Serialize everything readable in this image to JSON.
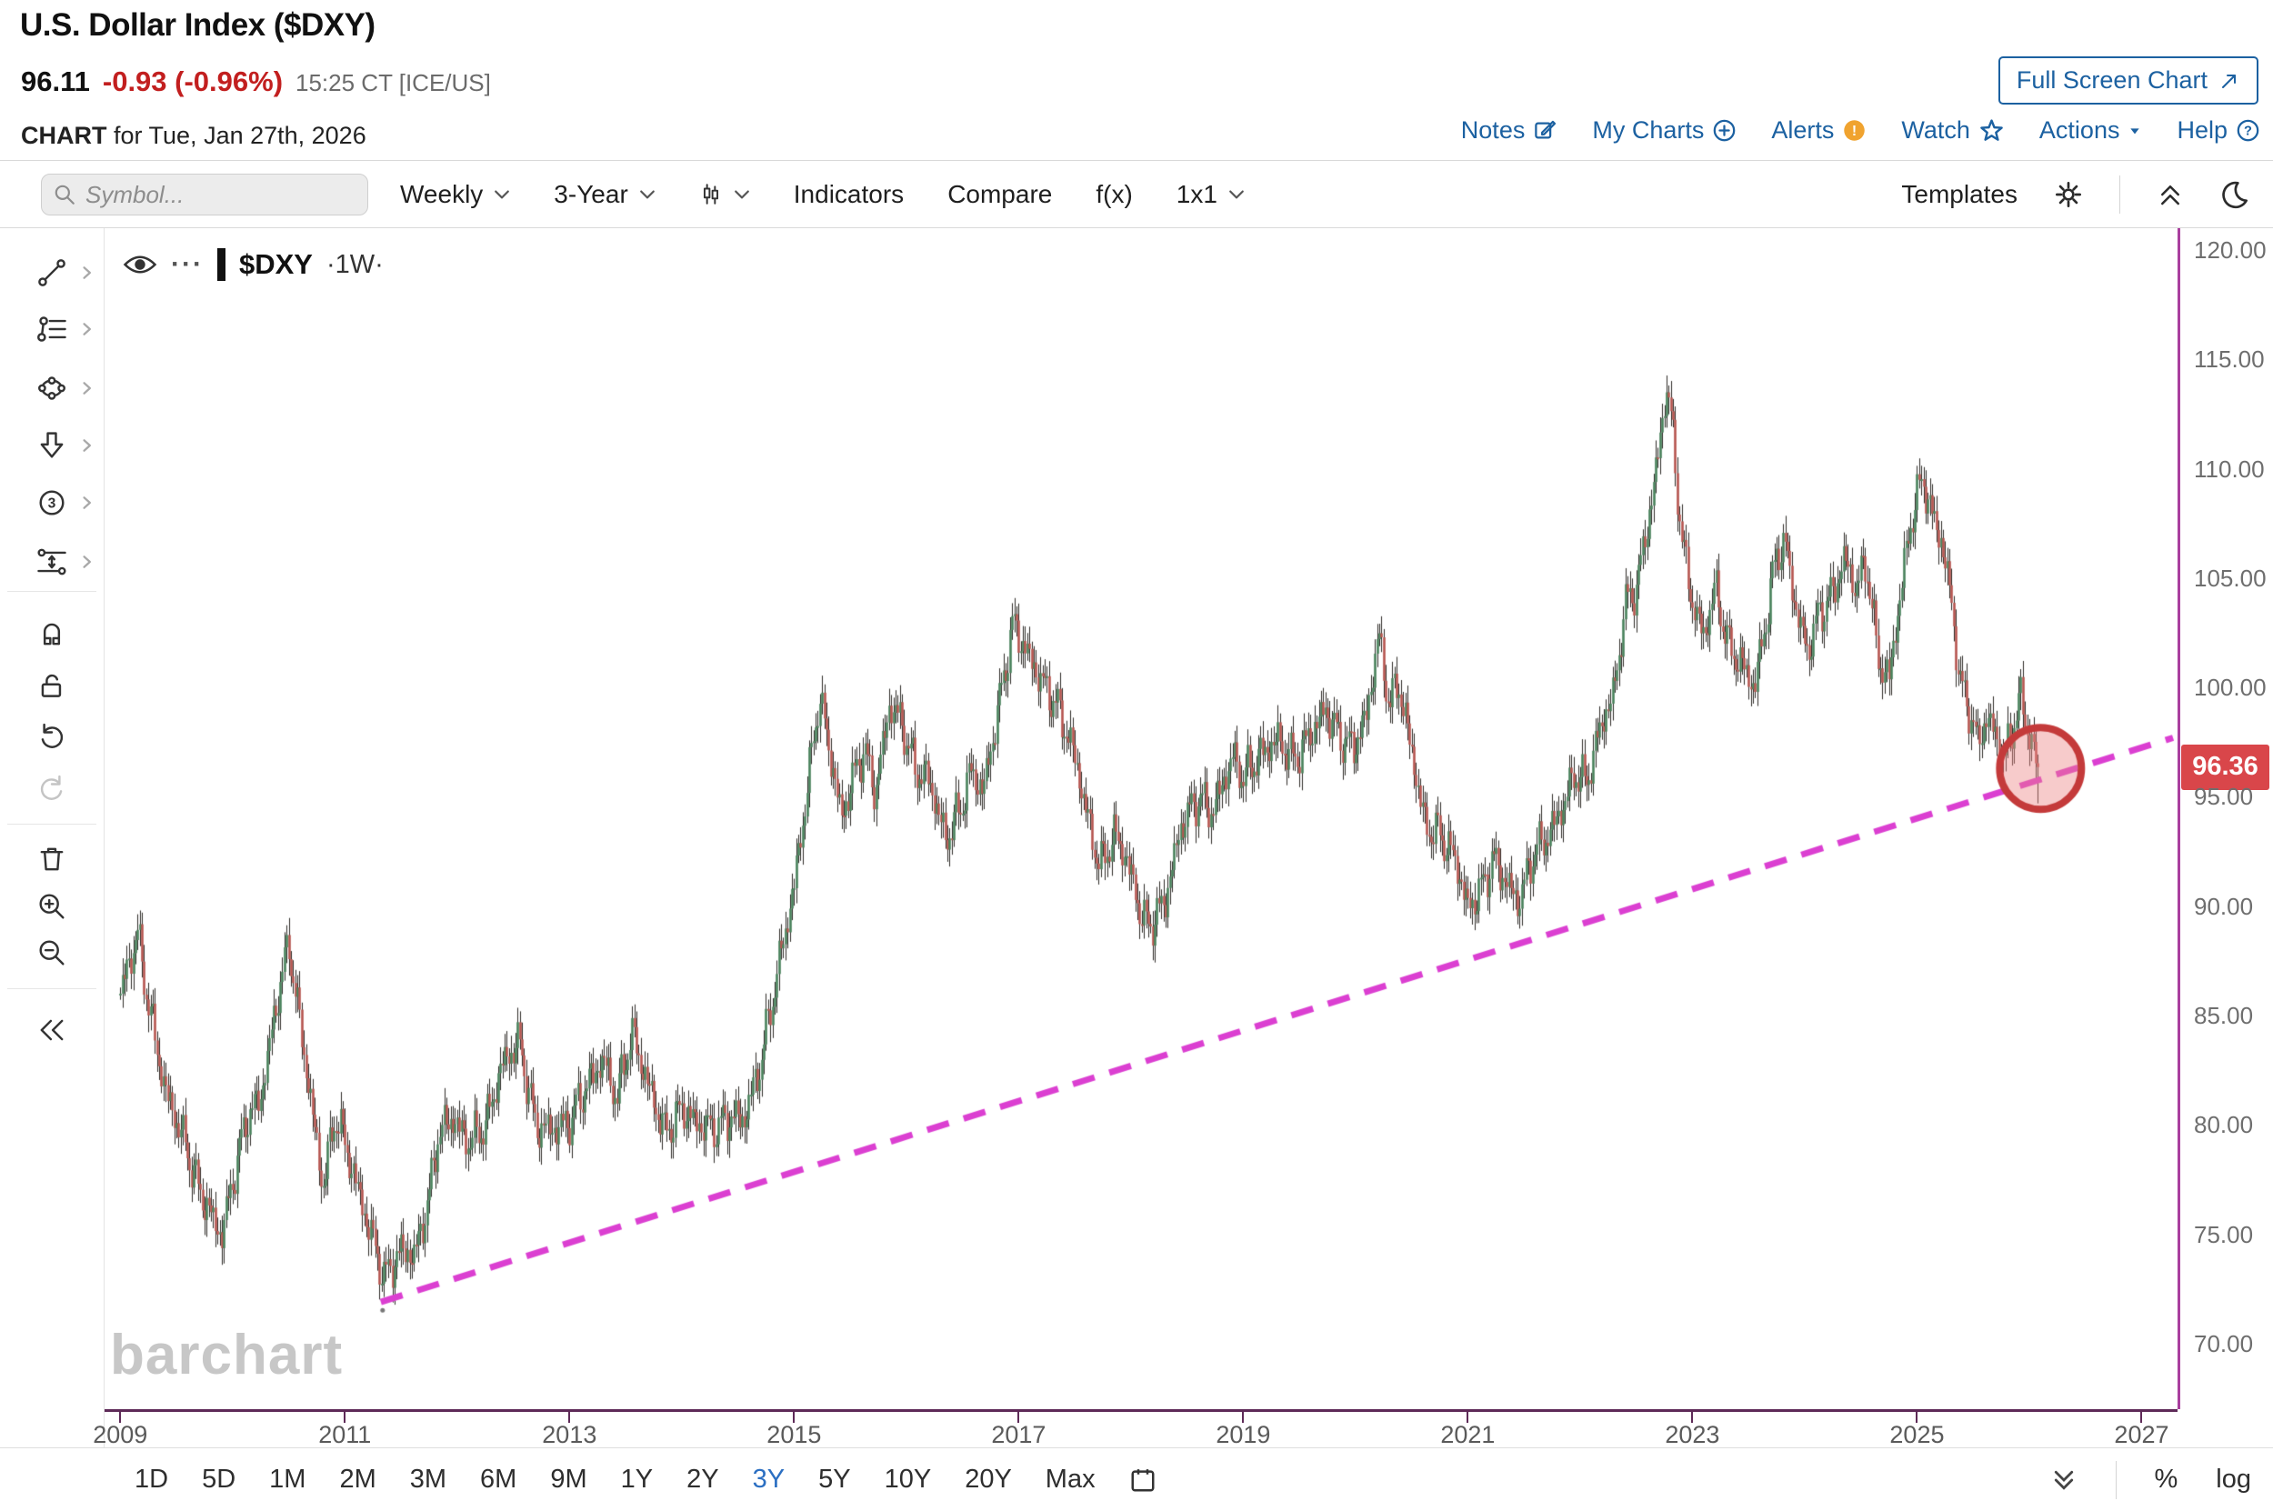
{
  "header": {
    "title": "U.S. Dollar Index ($DXY)",
    "last_price": "96.11",
    "change": "-0.93 (-0.96%)",
    "quote_time": "15:25 CT [ICE/US]",
    "chart_label": "CHART",
    "chart_date": "for Tue, Jan 27th, 2026",
    "full_screen_label": "Full Screen Chart",
    "links": [
      {
        "label": "Notes",
        "icon": "notes-icon"
      },
      {
        "label": "My Charts",
        "icon": "plus-circle-icon"
      },
      {
        "label": "Alerts",
        "icon": "alert-badge-icon"
      },
      {
        "label": "Watch",
        "icon": "star-icon"
      },
      {
        "label": "Actions",
        "icon": "caret-down-icon"
      },
      {
        "label": "Help",
        "icon": "help-icon"
      }
    ],
    "colors": {
      "link_blue": "#1c61a1",
      "change_red": "#c21f1f",
      "alert_orange": "#f0a32f"
    }
  },
  "toolbar": {
    "symbol_placeholder": "Symbol...",
    "period": "Weekly",
    "range": "3-Year",
    "indicators": "Indicators",
    "compare": "Compare",
    "fx": "f(x)",
    "grid": "1x1",
    "templates": "Templates"
  },
  "sidebar": {
    "groups": [
      [
        {
          "name": "trend-line-tool",
          "icon": "trend-line-icon",
          "submenu": true
        },
        {
          "name": "fibonacci-tool",
          "icon": "fib-lines-icon",
          "submenu": true
        },
        {
          "name": "shapes-tool",
          "icon": "ellipse-nodes-icon",
          "submenu": true
        },
        {
          "name": "arrow-annotation-tool",
          "icon": "arrow-down-icon",
          "submenu": true
        },
        {
          "name": "number-annotation-tool",
          "icon": "circled-number-icon",
          "submenu": true
        },
        {
          "name": "parallel-channel-tool",
          "icon": "parallel-channel-icon",
          "submenu": true
        }
      ],
      [
        {
          "name": "magnet-mode-button",
          "icon": "magnet-icon"
        },
        {
          "name": "unlock-drawings-button",
          "icon": "unlock-icon"
        },
        {
          "name": "undo-button",
          "icon": "undo-icon"
        },
        {
          "name": "redo-button",
          "icon": "redo-icon",
          "disabled": true
        }
      ],
      [
        {
          "name": "delete-drawings-button",
          "icon": "trash-icon"
        },
        {
          "name": "zoom-in-button",
          "icon": "zoom-in-icon"
        },
        {
          "name": "zoom-out-button",
          "icon": "zoom-out-icon"
        }
      ],
      [
        {
          "name": "collapse-sidebar-button",
          "icon": "collapse-left-icon"
        }
      ]
    ]
  },
  "chart": {
    "legend_symbol": "$DXY",
    "legend_more": "···",
    "legend_interval": "·1W·",
    "watermark": "barchart",
    "price_badge": "96.36"
  },
  "footer": {
    "ranges": [
      "1D",
      "5D",
      "1M",
      "2M",
      "3M",
      "6M",
      "9M",
      "1Y",
      "2Y",
      "3Y",
      "5Y",
      "10Y",
      "20Y",
      "Max"
    ],
    "active_range": "3Y",
    "percent_label": "%",
    "log_label": "log"
  },
  "chart_data": {
    "type": "candlestick",
    "symbol": "$DXY",
    "interval": "weekly",
    "title": "U.S. Dollar Index ($DXY)",
    "xlim": [
      2008.86,
      2027.32
    ],
    "ylim": [
      67,
      121
    ],
    "x_ticks": [
      2009,
      2011,
      2013,
      2015,
      2017,
      2019,
      2021,
      2023,
      2025,
      2027
    ],
    "y_ticks": [
      120,
      115,
      110,
      105,
      100,
      95,
      90,
      85,
      80,
      75,
      70
    ],
    "last_price": 96.36,
    "last_candle_low": 94.7,
    "grid": false,
    "anchor_points": [
      [
        2009.0,
        86.0
      ],
      [
        2009.15,
        88.8
      ],
      [
        2009.25,
        85.5
      ],
      [
        2009.4,
        81.5
      ],
      [
        2009.55,
        79.5
      ],
      [
        2009.7,
        77.0
      ],
      [
        2009.9,
        74.9
      ],
      [
        2010.0,
        77.5
      ],
      [
        2010.12,
        80.3
      ],
      [
        2010.25,
        81.3
      ],
      [
        2010.42,
        86.5
      ],
      [
        2010.5,
        88.2
      ],
      [
        2010.62,
        83.8
      ],
      [
        2010.8,
        77.2
      ],
      [
        2010.92,
        80.5
      ],
      [
        2011.05,
        78.2
      ],
      [
        2011.2,
        75.5
      ],
      [
        2011.35,
        73.0
      ],
      [
        2011.5,
        74.3
      ],
      [
        2011.62,
        74.0
      ],
      [
        2011.75,
        76.8
      ],
      [
        2011.83,
        79.6
      ],
      [
        2011.95,
        80.3
      ],
      [
        2012.1,
        79.2
      ],
      [
        2012.25,
        80.0
      ],
      [
        2012.4,
        82.8
      ],
      [
        2012.55,
        83.8
      ],
      [
        2012.7,
        79.9
      ],
      [
        2012.88,
        79.8
      ],
      [
        2013.0,
        80.2
      ],
      [
        2013.15,
        81.8
      ],
      [
        2013.3,
        83.0
      ],
      [
        2013.42,
        81.2
      ],
      [
        2013.55,
        84.2
      ],
      [
        2013.7,
        81.8
      ],
      [
        2013.85,
        79.6
      ],
      [
        2014.0,
        80.8
      ],
      [
        2014.15,
        80.0
      ],
      [
        2014.3,
        79.9
      ],
      [
        2014.45,
        80.4
      ],
      [
        2014.55,
        80.2
      ],
      [
        2014.7,
        82.8
      ],
      [
        2014.85,
        87.0
      ],
      [
        2015.0,
        91.0
      ],
      [
        2015.1,
        94.8
      ],
      [
        2015.22,
        99.6
      ],
      [
        2015.32,
        97.0
      ],
      [
        2015.42,
        94.0
      ],
      [
        2015.52,
        95.8
      ],
      [
        2015.62,
        97.2
      ],
      [
        2015.72,
        95.2
      ],
      [
        2015.85,
        99.2
      ],
      [
        2015.95,
        98.5
      ],
      [
        2016.08,
        96.2
      ],
      [
        2016.2,
        95.8
      ],
      [
        2016.35,
        93.0
      ],
      [
        2016.48,
        94.5
      ],
      [
        2016.58,
        96.2
      ],
      [
        2016.68,
        95.2
      ],
      [
        2016.8,
        98.6
      ],
      [
        2016.95,
        103.0
      ],
      [
        2017.05,
        101.8
      ],
      [
        2017.2,
        100.3
      ],
      [
        2017.35,
        99.0
      ],
      [
        2017.5,
        96.8
      ],
      [
        2017.62,
        93.8
      ],
      [
        2017.72,
        91.8
      ],
      [
        2017.85,
        93.3
      ],
      [
        2017.95,
        92.3
      ],
      [
        2018.08,
        89.8
      ],
      [
        2018.15,
        89.0
      ],
      [
        2018.3,
        90.2
      ],
      [
        2018.45,
        93.8
      ],
      [
        2018.6,
        95.0
      ],
      [
        2018.72,
        94.3
      ],
      [
        2018.9,
        96.8
      ],
      [
        2019.0,
        95.9
      ],
      [
        2019.15,
        96.9
      ],
      [
        2019.3,
        97.6
      ],
      [
        2019.45,
        96.7
      ],
      [
        2019.6,
        97.9
      ],
      [
        2019.73,
        99.0
      ],
      [
        2019.85,
        97.8
      ],
      [
        2019.98,
        97.2
      ],
      [
        2020.1,
        98.8
      ],
      [
        2020.2,
        102.4
      ],
      [
        2020.3,
        99.2
      ],
      [
        2020.38,
        100.2
      ],
      [
        2020.5,
        97.0
      ],
      [
        2020.62,
        93.6
      ],
      [
        2020.75,
        93.3
      ],
      [
        2020.88,
        92.2
      ],
      [
        2021.0,
        89.9
      ],
      [
        2021.12,
        90.8
      ],
      [
        2021.22,
        92.2
      ],
      [
        2021.35,
        91.0
      ],
      [
        2021.45,
        90.2
      ],
      [
        2021.58,
        92.4
      ],
      [
        2021.72,
        93.3
      ],
      [
        2021.85,
        94.6
      ],
      [
        2021.95,
        96.1
      ],
      [
        2022.05,
        95.6
      ],
      [
        2022.18,
        98.2
      ],
      [
        2022.3,
        99.8
      ],
      [
        2022.4,
        103.8
      ],
      [
        2022.5,
        104.6
      ],
      [
        2022.6,
        107.5
      ],
      [
        2022.7,
        110.8
      ],
      [
        2022.76,
        113.9
      ],
      [
        2022.82,
        111.8
      ],
      [
        2022.9,
        106.8
      ],
      [
        2023.0,
        103.8
      ],
      [
        2023.1,
        102.3
      ],
      [
        2023.2,
        104.6
      ],
      [
        2023.32,
        101.8
      ],
      [
        2023.42,
        101.2
      ],
      [
        2023.55,
        100.0
      ],
      [
        2023.65,
        103.0
      ],
      [
        2023.75,
        106.2
      ],
      [
        2023.82,
        106.6
      ],
      [
        2023.92,
        103.6
      ],
      [
        2024.02,
        101.6
      ],
      [
        2024.12,
        103.3
      ],
      [
        2024.25,
        104.3
      ],
      [
        2024.35,
        105.9
      ],
      [
        2024.45,
        104.6
      ],
      [
        2024.55,
        105.7
      ],
      [
        2024.65,
        101.3
      ],
      [
        2024.75,
        100.4
      ],
      [
        2024.85,
        104.3
      ],
      [
        2024.95,
        107.8
      ],
      [
        2025.05,
        109.6
      ],
      [
        2025.13,
        107.9
      ],
      [
        2025.22,
        106.6
      ],
      [
        2025.3,
        104.1
      ],
      [
        2025.38,
        100.2
      ],
      [
        2025.46,
        99.1
      ],
      [
        2025.54,
        97.4
      ],
      [
        2025.62,
        98.7
      ],
      [
        2025.7,
        97.7
      ],
      [
        2025.78,
        96.7
      ],
      [
        2025.86,
        98.4
      ],
      [
        2025.92,
        99.5
      ],
      [
        2025.98,
        98.1
      ],
      [
        2026.03,
        97.3
      ],
      [
        2026.07,
        96.36
      ]
    ],
    "trendline": {
      "style": "dashed",
      "color": "#db3fd1",
      "from": [
        2011.32,
        71.9
      ],
      "to": [
        2027.28,
        97.7
      ]
    },
    "annotation_circle": {
      "center": [
        2026.1,
        96.3
      ],
      "radius_px": 45,
      "stroke": "#c43a3a",
      "fill": "rgba(235,130,130,0.42)"
    },
    "colors": {
      "up": "#47815a",
      "down": "#b5544e",
      "wick": "#2d2a26",
      "axis_border": "#a93f9e",
      "x_axis_line": "#5e2a58"
    }
  }
}
